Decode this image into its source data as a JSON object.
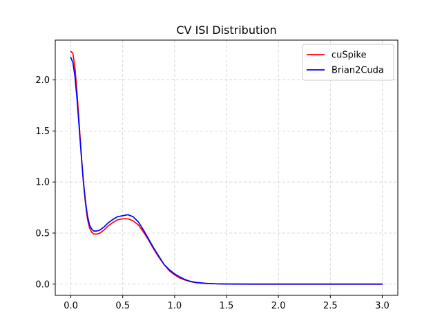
{
  "chart_data": {
    "type": "line",
    "title": "CV ISI Distribution",
    "xlabel": "",
    "ylabel": "",
    "xlim": [
      -0.15,
      3.15
    ],
    "ylim": [
      -0.11,
      2.39
    ],
    "xticks": [
      0.0,
      0.5,
      1.0,
      1.5,
      2.0,
      2.5,
      3.0
    ],
    "xtick_labels": [
      "0.0",
      "0.5",
      "1.0",
      "1.5",
      "2.0",
      "2.5",
      "3.0"
    ],
    "yticks": [
      0.0,
      0.5,
      1.0,
      1.5,
      2.0
    ],
    "ytick_labels": [
      "0.0",
      "0.5",
      "1.0",
      "1.5",
      "2.0"
    ],
    "grid": true,
    "legend_position": "top-right",
    "series": [
      {
        "name": "cuSpike",
        "color": "#ff0000",
        "x": [
          0.0,
          0.02,
          0.04,
          0.06,
          0.08,
          0.1,
          0.12,
          0.14,
          0.16,
          0.18,
          0.2,
          0.22,
          0.25,
          0.28,
          0.32,
          0.36,
          0.4,
          0.45,
          0.5,
          0.55,
          0.6,
          0.65,
          0.7,
          0.75,
          0.8,
          0.85,
          0.9,
          0.95,
          1.0,
          1.05,
          1.1,
          1.15,
          1.2,
          1.3,
          1.4,
          1.5,
          1.75,
          2.0,
          2.5,
          3.0
        ],
        "y": [
          2.28,
          2.26,
          2.12,
          1.87,
          1.58,
          1.28,
          1.01,
          0.8,
          0.64,
          0.55,
          0.51,
          0.49,
          0.49,
          0.5,
          0.53,
          0.57,
          0.6,
          0.63,
          0.64,
          0.64,
          0.62,
          0.58,
          0.51,
          0.43,
          0.34,
          0.26,
          0.19,
          0.13,
          0.09,
          0.06,
          0.04,
          0.025,
          0.015,
          0.007,
          0.003,
          0.001,
          0.0,
          0.0,
          0.0,
          0.0
        ]
      },
      {
        "name": "Brian2Cuda",
        "color": "#0000ff",
        "x": [
          0.0,
          0.02,
          0.04,
          0.06,
          0.08,
          0.1,
          0.12,
          0.14,
          0.16,
          0.18,
          0.2,
          0.22,
          0.25,
          0.28,
          0.32,
          0.36,
          0.4,
          0.45,
          0.5,
          0.55,
          0.6,
          0.65,
          0.7,
          0.75,
          0.8,
          0.85,
          0.9,
          0.95,
          1.0,
          1.05,
          1.1,
          1.15,
          1.2,
          1.3,
          1.4,
          1.5,
          1.75,
          2.0,
          2.5,
          3.0
        ],
        "y": [
          2.22,
          2.17,
          2.03,
          1.81,
          1.54,
          1.27,
          1.02,
          0.82,
          0.67,
          0.58,
          0.54,
          0.52,
          0.52,
          0.53,
          0.56,
          0.6,
          0.63,
          0.66,
          0.67,
          0.68,
          0.66,
          0.61,
          0.53,
          0.44,
          0.35,
          0.27,
          0.19,
          0.14,
          0.1,
          0.07,
          0.045,
          0.028,
          0.017,
          0.008,
          0.003,
          0.001,
          0.0,
          0.0,
          0.0,
          0.0
        ]
      }
    ]
  }
}
